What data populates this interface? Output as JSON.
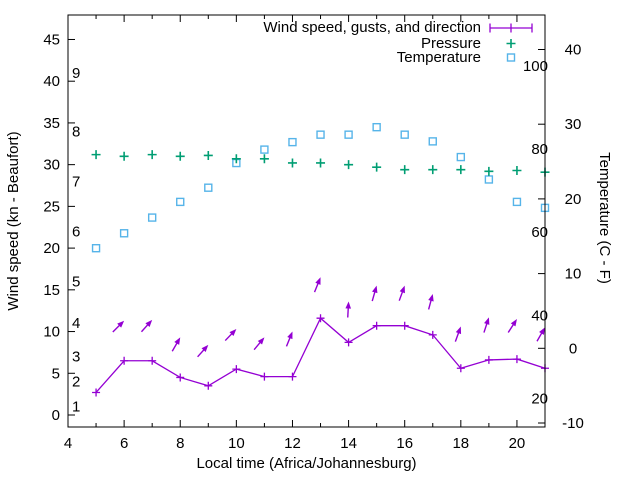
{
  "chart_data": {
    "type": "line",
    "title": "",
    "xlabel": "Local time (Africa/Johannesburg)",
    "ylabel_left": "Wind speed (kn - Beaufort)",
    "ylabel_right": "Temperature (C - F)",
    "grid": false,
    "xlim": [
      4,
      21
    ],
    "x_major_ticks": [
      4,
      6,
      8,
      10,
      12,
      14,
      16,
      18,
      20
    ],
    "x_minor_ticks": [
      5,
      7,
      9,
      11,
      13,
      15,
      17,
      19,
      21
    ],
    "left_axis_kn": {
      "ticks": [
        0,
        5,
        10,
        15,
        20,
        25,
        30,
        35,
        40,
        45
      ],
      "lim": [
        -1.4,
        47.9
      ]
    },
    "right_axis_c": {
      "ticks": [
        -10,
        0,
        10,
        20,
        30,
        40
      ],
      "lim": [
        -10.5,
        44.6
      ]
    },
    "beaufort_labels": [
      {
        "label": "1",
        "kn": 1
      },
      {
        "label": "2",
        "kn": 4
      },
      {
        "label": "3",
        "kn": 7
      },
      {
        "label": "4",
        "kn": 11
      },
      {
        "label": "5",
        "kn": 16
      },
      {
        "label": "6",
        "kn": 22
      },
      {
        "label": "7",
        "kn": 28
      },
      {
        "label": "8",
        "kn": 34
      },
      {
        "label": "9",
        "kn": 41
      }
    ],
    "fahrenheit_labels": [
      {
        "label": "20",
        "c": -6.7
      },
      {
        "label": "40",
        "c": 4.4
      },
      {
        "label": "60",
        "c": 15.6
      },
      {
        "label": "80",
        "c": 26.7
      },
      {
        "label": "100",
        "c": 37.8
      }
    ],
    "legend": {
      "position": "top-right-inside",
      "entries": [
        {
          "label": "Wind speed, gusts, and direction",
          "marker": "errorbar-line",
          "color": "#9400d3"
        },
        {
          "label": "Pressure",
          "marker": "plus",
          "color": "#009e73"
        },
        {
          "label": "Temperature",
          "marker": "open-square",
          "color": "#56b4e9"
        }
      ]
    },
    "hours": [
      5,
      6,
      7,
      8,
      9,
      10,
      11,
      12,
      13,
      14,
      15,
      16,
      17,
      18,
      19,
      20,
      21
    ],
    "series": [
      {
        "name": "Wind speed, gusts, and direction",
        "axis": "left (kn)",
        "color": "#9400d3",
        "speed_kn": [
          2.7,
          6.5,
          6.5,
          4.5,
          3.5,
          5.5,
          4.6,
          4.6,
          11.6,
          8.7,
          10.7,
          10.7,
          9.6,
          5.6,
          6.6,
          6.7,
          5.6
        ],
        "gust_kn": [
          null,
          11.3,
          11.4,
          9.3,
          8.4,
          10.3,
          9.3,
          10.0,
          16.5,
          13.6,
          15.5,
          15.5,
          14.5,
          10.6,
          11.7,
          11.5,
          10.5
        ],
        "arrow_angle_deg_up_from_horizontal": [
          null,
          45,
          48,
          60,
          48,
          46,
          50,
          68,
          68,
          87,
          74,
          70,
          75,
          70,
          72,
          57,
          60
        ]
      },
      {
        "name": "Pressure",
        "axis": "unlabeled (plotted against left kn scale)",
        "color": "#009e73",
        "values_kn_scale": [
          31.2,
          31.0,
          31.2,
          31.0,
          31.1,
          30.7,
          30.7,
          30.2,
          30.2,
          30.0,
          29.7,
          29.4,
          29.4,
          29.4,
          29.2,
          29.3,
          29.1
        ]
      },
      {
        "name": "Temperature",
        "axis": "right (C)",
        "color": "#56b4e9",
        "values_c": [
          13.4,
          15.4,
          17.5,
          19.6,
          21.5,
          24.8,
          26.6,
          27.6,
          28.6,
          28.6,
          29.6,
          28.6,
          27.7,
          25.6,
          22.6,
          19.6,
          18.8
        ]
      }
    ],
    "colors": {
      "wind": "#9400d3",
      "pressure": "#009e73",
      "temperature": "#56b4e9",
      "axis": "#000000",
      "background": "#ffffff"
    }
  }
}
